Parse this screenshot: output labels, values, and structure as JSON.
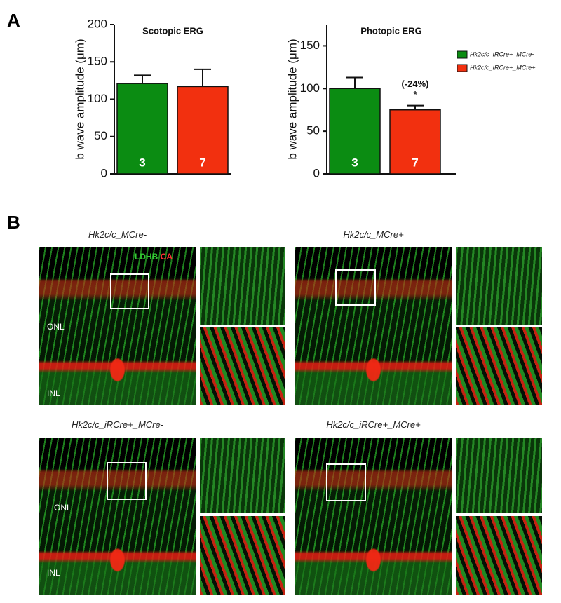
{
  "panel_a": {
    "label": "A"
  },
  "chart_data": [
    {
      "type": "bar",
      "title": "Scotopic ERG",
      "y_label": "b wave amplitude (μm)",
      "categories": [
        "Hk2c/c_IRCre+_MCre-",
        "Hk2c/c_IRCre+_MCre+"
      ],
      "series": [
        {
          "name": "Hk2c/c_IRCre+_MCre-",
          "color": "#0b8c12"
        },
        {
          "name": "Hk2c/c_IRCre+_MCre+",
          "color": "#f2300f"
        }
      ],
      "values": [
        121,
        117
      ],
      "errors": [
        11,
        23
      ],
      "n": [
        3,
        7
      ],
      "ylim": [
        0,
        200
      ],
      "yticks": [
        0,
        50,
        100,
        150,
        200
      ]
    },
    {
      "type": "bar",
      "title": "Photopic ERG",
      "y_label": "b wave amplitude (μm)",
      "categories": [
        "Hk2c/c_IRCre+_MCre-",
        "Hk2c/c_IRCre+_MCre+"
      ],
      "series": [
        {
          "name": "Hk2c/c_IRCre+_MCre-",
          "color": "#0b8c12"
        },
        {
          "name": "Hk2c/c_IRCre+_MCre+",
          "color": "#f2300f"
        }
      ],
      "values": [
        100,
        75
      ],
      "errors": [
        13,
        5
      ],
      "n": [
        3,
        7
      ],
      "annotations": [
        "(-24%)",
        "*"
      ],
      "ylim": [
        0,
        175
      ],
      "yticks": [
        0,
        50,
        100,
        150
      ]
    }
  ],
  "panel_b": {
    "label": "B",
    "stain_1": "LDHB",
    "stain_2": "CA",
    "panels": [
      {
        "title": "Hk2c/c_MCre-",
        "layers": [
          "ONL",
          "INL"
        ]
      },
      {
        "title": "Hk2c/c_MCre+"
      },
      {
        "title": "Hk2c/c_iRCre+_MCre-",
        "layers": [
          "ONL",
          "INL"
        ]
      },
      {
        "title": "Hk2c/c_iRCre+_MCre+"
      }
    ]
  }
}
